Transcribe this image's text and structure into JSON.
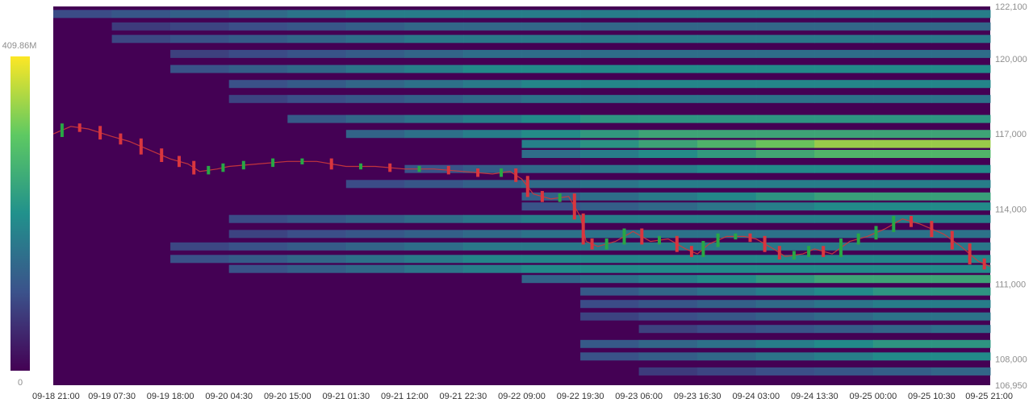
{
  "chart_data": {
    "type": "heatmap",
    "title": "",
    "xlabel": "",
    "ylabel": "",
    "x_ticks": [
      "09-18 21:00",
      "09-19 07:30",
      "09-19 18:00",
      "09-20 04:30",
      "09-20 15:00",
      "09-21 01:30",
      "09-21 12:00",
      "09-21 22:30",
      "09-22 09:00",
      "09-22 19:30",
      "09-23 06:00",
      "09-23 16:30",
      "09-24 03:00",
      "09-24 13:30",
      "09-25 00:00",
      "09-25 10:30",
      "09-25 21:00"
    ],
    "y_ticks": [
      122100,
      120000,
      117000,
      114000,
      111000,
      108000,
      106950
    ],
    "y_tick_labels": [
      "122,100",
      "120,000",
      "117,000",
      "114,000",
      "111,000",
      "108,000",
      "106,950"
    ],
    "ylim": [
      106950,
      122100
    ],
    "colorbar": {
      "min_label": "0",
      "max_label": "409.86M",
      "min": 0,
      "max": 409860000
    },
    "colors": [
      "#440154",
      "#3b528b",
      "#21918c",
      "#5ec962",
      "#fde725"
    ],
    "liquidity_bands": [
      {
        "price": 121800,
        "intensity": 0.45,
        "start": 0
      },
      {
        "price": 121300,
        "intensity": 0.35,
        "start": 1
      },
      {
        "price": 120800,
        "intensity": 0.42,
        "start": 1
      },
      {
        "price": 120200,
        "intensity": 0.38,
        "start": 2
      },
      {
        "price": 119600,
        "intensity": 0.5,
        "start": 2
      },
      {
        "price": 119000,
        "intensity": 0.48,
        "start": 3
      },
      {
        "price": 118400,
        "intensity": 0.4,
        "start": 3
      },
      {
        "price": 117600,
        "intensity": 0.55,
        "start": 4
      },
      {
        "price": 117000,
        "intensity": 0.62,
        "start": 5
      },
      {
        "price": 116600,
        "intensity": 0.85,
        "start": 8
      },
      {
        "price": 116200,
        "intensity": 0.7,
        "start": 8
      },
      {
        "price": 115600,
        "intensity": 0.5,
        "start": 6
      },
      {
        "price": 115000,
        "intensity": 0.45,
        "start": 5
      },
      {
        "price": 114500,
        "intensity": 0.6,
        "start": 8
      },
      {
        "price": 114100,
        "intensity": 0.5,
        "start": 8
      },
      {
        "price": 113600,
        "intensity": 0.45,
        "start": 3
      },
      {
        "price": 113000,
        "intensity": 0.4,
        "start": 3
      },
      {
        "price": 112500,
        "intensity": 0.42,
        "start": 2
      },
      {
        "price": 112000,
        "intensity": 0.48,
        "start": 2
      },
      {
        "price": 111600,
        "intensity": 0.5,
        "start": 3
      },
      {
        "price": 111200,
        "intensity": 0.62,
        "start": 8
      },
      {
        "price": 110700,
        "intensity": 0.55,
        "start": 9
      },
      {
        "price": 110200,
        "intensity": 0.45,
        "start": 9
      },
      {
        "price": 109700,
        "intensity": 0.4,
        "start": 9
      },
      {
        "price": 109200,
        "intensity": 0.38,
        "start": 10
      },
      {
        "price": 108600,
        "intensity": 0.55,
        "start": 9
      },
      {
        "price": 108100,
        "intensity": 0.5,
        "start": 9
      },
      {
        "price": 107500,
        "intensity": 0.35,
        "start": 10
      }
    ],
    "price_path": [
      [
        0,
        117000
      ],
      [
        0.3,
        117300
      ],
      [
        0.6,
        117200
      ],
      [
        1.0,
        116900
      ],
      [
        1.3,
        116700
      ],
      [
        1.7,
        116300
      ],
      [
        2.0,
        116000
      ],
      [
        2.3,
        115800
      ],
      [
        2.5,
        115500
      ],
      [
        2.8,
        115600
      ],
      [
        3.0,
        115700
      ],
      [
        3.5,
        115800
      ],
      [
        4.0,
        115900
      ],
      [
        4.5,
        115900
      ],
      [
        5.0,
        115700
      ],
      [
        5.5,
        115700
      ],
      [
        6.0,
        115600
      ],
      [
        6.5,
        115600
      ],
      [
        7.0,
        115500
      ],
      [
        7.5,
        115400
      ],
      [
        7.8,
        115500
      ],
      [
        8.0,
        115200
      ],
      [
        8.2,
        114600
      ],
      [
        8.5,
        114400
      ],
      [
        8.8,
        114500
      ],
      [
        9.0,
        113700
      ],
      [
        9.1,
        112700
      ],
      [
        9.3,
        112500
      ],
      [
        9.6,
        112700
      ],
      [
        9.9,
        113100
      ],
      [
        10.2,
        112700
      ],
      [
        10.5,
        112800
      ],
      [
        10.8,
        112400
      ],
      [
        11.0,
        112200
      ],
      [
        11.2,
        112600
      ],
      [
        11.5,
        112900
      ],
      [
        11.8,
        112900
      ],
      [
        12.0,
        112800
      ],
      [
        12.3,
        112400
      ],
      [
        12.5,
        112100
      ],
      [
        12.8,
        112200
      ],
      [
        13.0,
        112400
      ],
      [
        13.3,
        112200
      ],
      [
        13.6,
        112700
      ],
      [
        13.9,
        112900
      ],
      [
        14.2,
        113200
      ],
      [
        14.5,
        113600
      ],
      [
        14.8,
        113400
      ],
      [
        15.2,
        113000
      ],
      [
        15.5,
        112500
      ],
      [
        15.8,
        111900
      ],
      [
        16.0,
        111700
      ]
    ]
  }
}
